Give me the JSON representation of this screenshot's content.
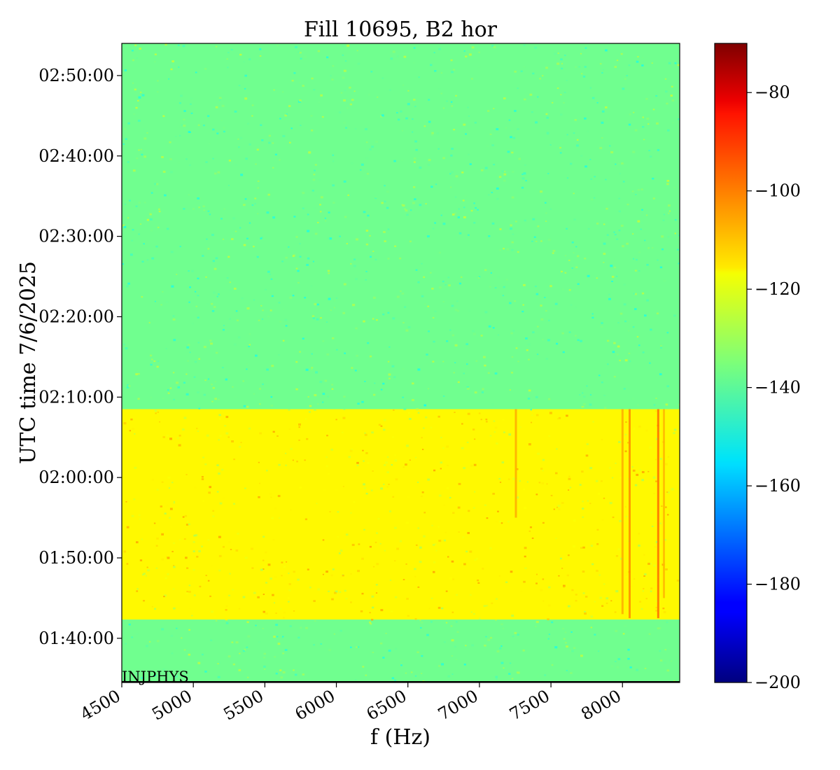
{
  "chart_data": {
    "type": "heatmap",
    "title": "Fill 10695, B2 hor",
    "xlabel": "f (Hz)",
    "ylabel": "UTC time 7/6/2025",
    "xlim": [
      4500,
      8400
    ],
    "ylim": [
      "01:34:30",
      "02:54:00"
    ],
    "x_ticks": [
      {
        "value": 4500,
        "label": "4500"
      },
      {
        "value": 5000,
        "label": "5000"
      },
      {
        "value": 5500,
        "label": "5500"
      },
      {
        "value": 6000,
        "label": "6000"
      },
      {
        "value": 6500,
        "label": "6500"
      },
      {
        "value": 7000,
        "label": "7000"
      },
      {
        "value": 7500,
        "label": "7500"
      },
      {
        "value": 8000,
        "label": "8000"
      }
    ],
    "y_ticks": [
      {
        "value": "01:40:00",
        "label": "01:40:00"
      },
      {
        "value": "01:50:00",
        "label": "01:50:00"
      },
      {
        "value": "02:00:00",
        "label": "02:00:00"
      },
      {
        "value": "02:10:00",
        "label": "02:10:00"
      },
      {
        "value": "02:20:00",
        "label": "02:20:00"
      },
      {
        "value": "02:30:00",
        "label": "02:30:00"
      },
      {
        "value": "02:40:00",
        "label": "02:40:00"
      },
      {
        "value": "02:50:00",
        "label": "02:50:00"
      }
    ],
    "colorbar": {
      "colormap": "jet",
      "range": [
        -200,
        -70
      ],
      "ticks": [
        {
          "value": -80,
          "label": "−80"
        },
        {
          "value": -100,
          "label": "−100"
        },
        {
          "value": -120,
          "label": "−120"
        },
        {
          "value": -140,
          "label": "−140"
        },
        {
          "value": -160,
          "label": "−160"
        },
        {
          "value": -180,
          "label": "−180"
        },
        {
          "value": -200,
          "label": "−200"
        }
      ]
    },
    "regions": [
      {
        "t_start": "01:34:30",
        "t_end": "01:42:20",
        "level": -137
      },
      {
        "t_start": "01:42:20",
        "t_end": "02:08:30",
        "level": -118
      },
      {
        "t_start": "02:08:30",
        "t_end": "02:54:00",
        "level": -137
      }
    ],
    "spectral_lines": [
      {
        "f": 7255,
        "t_start": "01:55:00",
        "t_end": "02:08:30",
        "level": -108
      },
      {
        "f": 8000,
        "t_start": "01:43:00",
        "t_end": "02:08:30",
        "level": -108
      },
      {
        "f": 8050,
        "t_start": "01:42:30",
        "t_end": "02:08:30",
        "level": -104
      },
      {
        "f": 8250,
        "t_start": "01:42:30",
        "t_end": "02:08:30",
        "level": -100
      },
      {
        "f": 8290,
        "t_start": "01:45:00",
        "t_end": "02:08:30",
        "level": -110
      }
    ],
    "annotation": "INJPHYS"
  }
}
